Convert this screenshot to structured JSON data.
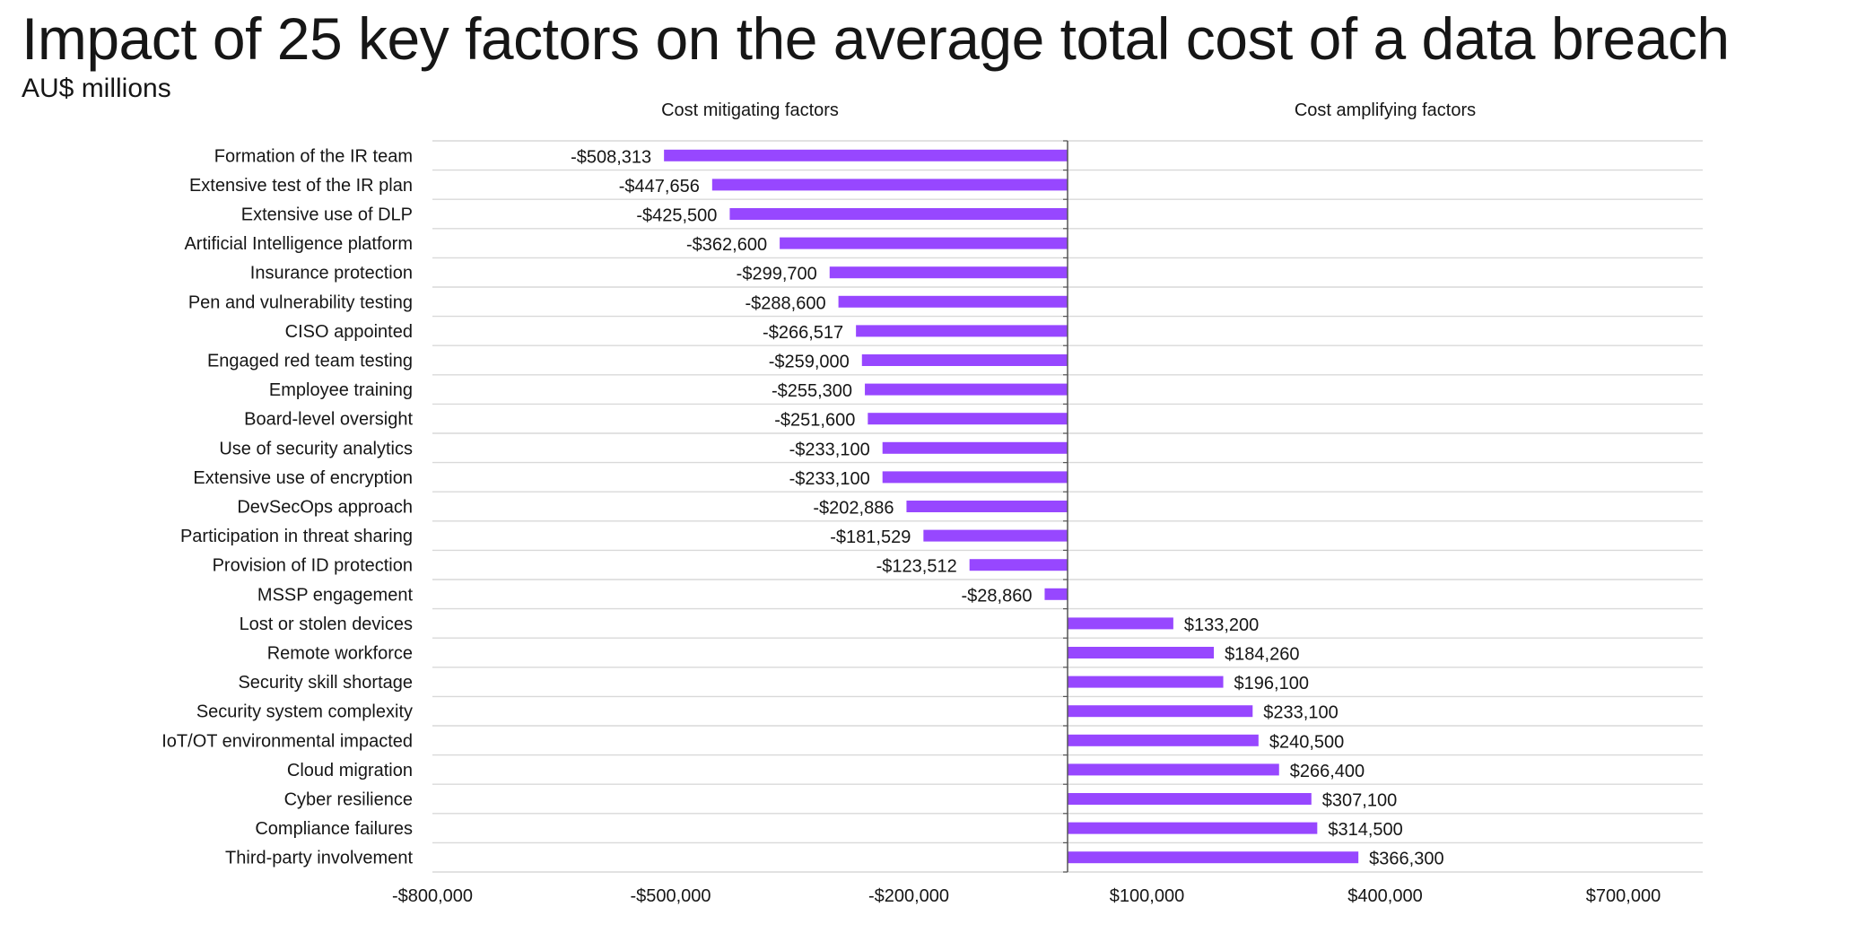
{
  "chart_data": {
    "type": "bar",
    "orientation": "horizontal",
    "title": "Impact of 25 key factors on the average total cost of a data breach",
    "subtitle": "AU$ millions",
    "section_labels": {
      "left": "Cost mitigating factors",
      "right": "Cost amplifying factors"
    },
    "xlim": [
      -800000,
      800000
    ],
    "x_ticks": [
      -800000,
      -500000,
      -200000,
      100000,
      400000,
      700000
    ],
    "x_tick_labels": [
      "-$800,000",
      "-$500,000",
      "-$200,000",
      "$100,000",
      "$400,000",
      "$700,000"
    ],
    "bar_color": "#9747ff",
    "grid": true,
    "categories": [
      "Formation of the IR team",
      "Extensive test of the IR plan",
      "Extensive use of DLP",
      "Artificial Intelligence platform",
      "Insurance protection",
      "Pen and vulnerability testing",
      "CISO appointed",
      "Engaged red team testing",
      "Employee training",
      "Board-level oversight",
      "Use of security analytics",
      "Extensive use of encryption",
      "DevSecOps approach",
      "Participation in threat sharing",
      "Provision of ID protection",
      "MSSP engagement",
      "Lost or stolen devices",
      "Remote workforce",
      "Security skill shortage ",
      "Security system complexity",
      "IoT/OT environmental impacted",
      "Cloud migration",
      "Cyber resilience",
      "Compliance failures",
      "Third-party involvement"
    ],
    "values": [
      -508313,
      -447656,
      -425500,
      -362600,
      -299700,
      -288600,
      -266517,
      -259000,
      -255300,
      -251600,
      -233100,
      -233100,
      -202886,
      -181529,
      -123512,
      -28860,
      133200,
      184260,
      196100,
      233100,
      240500,
      266400,
      307100,
      314500,
      366300
    ],
    "value_labels": [
      "-$508,313",
      "-$447,656",
      "-$425,500",
      "-$362,600",
      "-$299,700",
      "-$288,600",
      "-$266,517",
      "-$259,000",
      "-$255,300",
      "-$251,600",
      "-$233,100",
      "-$233,100",
      "-$202,886",
      "-$181,529",
      "-$123,512",
      "-$28,860",
      "$133,200",
      "$184,260",
      "$196,100",
      "$233,100",
      "$240,500",
      "$266,400",
      "$307,100",
      "$314,500",
      "$366,300"
    ]
  }
}
